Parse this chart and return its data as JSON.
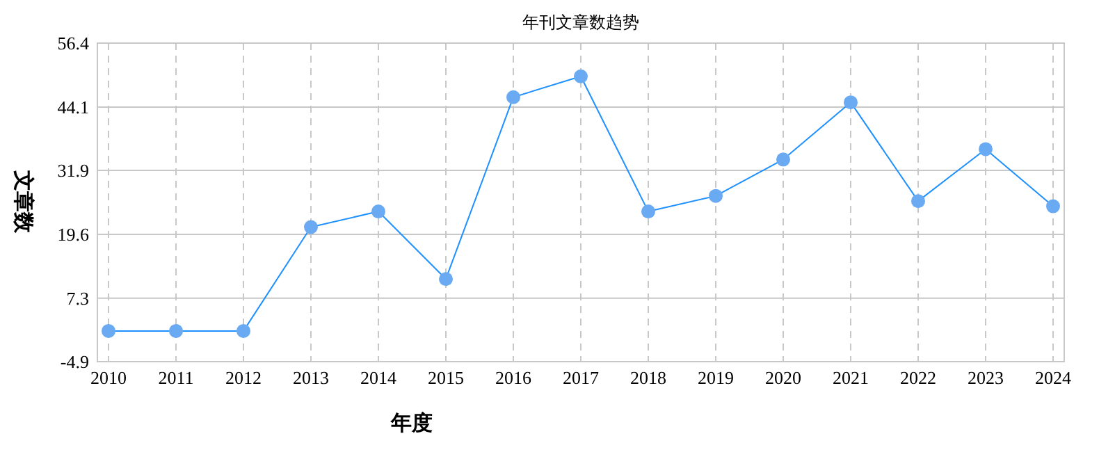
{
  "chart_data": {
    "type": "line",
    "title": "年刊文章数趋势",
    "xlabel": "年度",
    "ylabel": "文章数",
    "categories": [
      "2010",
      "2011",
      "2012",
      "2013",
      "2014",
      "2015",
      "2016",
      "2017",
      "2018",
      "2019",
      "2020",
      "2021",
      "2022",
      "2023",
      "2024"
    ],
    "series": [
      {
        "color": "#1e90ff",
        "values": [
          1,
          1,
          1,
          21,
          24,
          11,
          46,
          50,
          24,
          27,
          34,
          45,
          26,
          36,
          25
        ]
      }
    ],
    "ylim": [
      -4.9,
      56.4
    ],
    "yticks": [
      -4.9,
      7.3,
      19.6,
      31.9,
      44.1,
      56.4
    ],
    "grid": true,
    "marker": "circle",
    "line_style": "solid"
  }
}
